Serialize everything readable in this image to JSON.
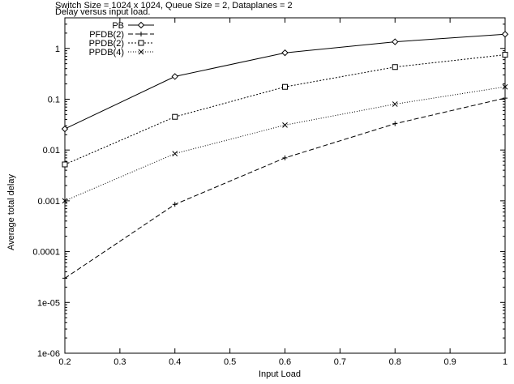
{
  "chart_data": {
    "type": "line",
    "title": "Switch Size = 1024 x 1024, Queue Size = 2, Dataplanes = 2",
    "subtitle": "Delay versus input load.",
    "xlabel": "Input Load",
    "ylabel": "Average total delay",
    "x": [
      0.2,
      0.4,
      0.6,
      0.8,
      1.0
    ],
    "xlim": [
      0.2,
      1.0
    ],
    "ylim": [
      1e-06,
      4
    ],
    "yscale": "log",
    "grid": false,
    "legend_position": "top-left",
    "x_ticks": [
      "0.2",
      "0.3",
      "0.4",
      "0.5",
      "0.6",
      "0.7",
      "0.8",
      "0.9",
      "1"
    ],
    "y_ticks": [
      "1e-06",
      "1e-05",
      "0.0001",
      "0.001",
      "0.01",
      "0.1",
      "1"
    ],
    "series": [
      {
        "name": "PB",
        "marker": "diamond",
        "dash": "",
        "values": [
          0.026,
          0.28,
          0.82,
          1.35,
          1.9
        ]
      },
      {
        "name": "PFDB(2)",
        "marker": "plus",
        "dash": "6,3",
        "values": [
          3e-05,
          0.00085,
          0.007,
          0.033,
          0.105
        ]
      },
      {
        "name": "PPDB(2)",
        "marker": "square",
        "dash": "2,2",
        "values": [
          0.0052,
          0.045,
          0.175,
          0.43,
          0.75
        ]
      },
      {
        "name": "PPDB(4)",
        "marker": "cross",
        "dash": "1,2",
        "values": [
          0.001,
          0.0085,
          0.031,
          0.08,
          0.175
        ]
      }
    ]
  }
}
